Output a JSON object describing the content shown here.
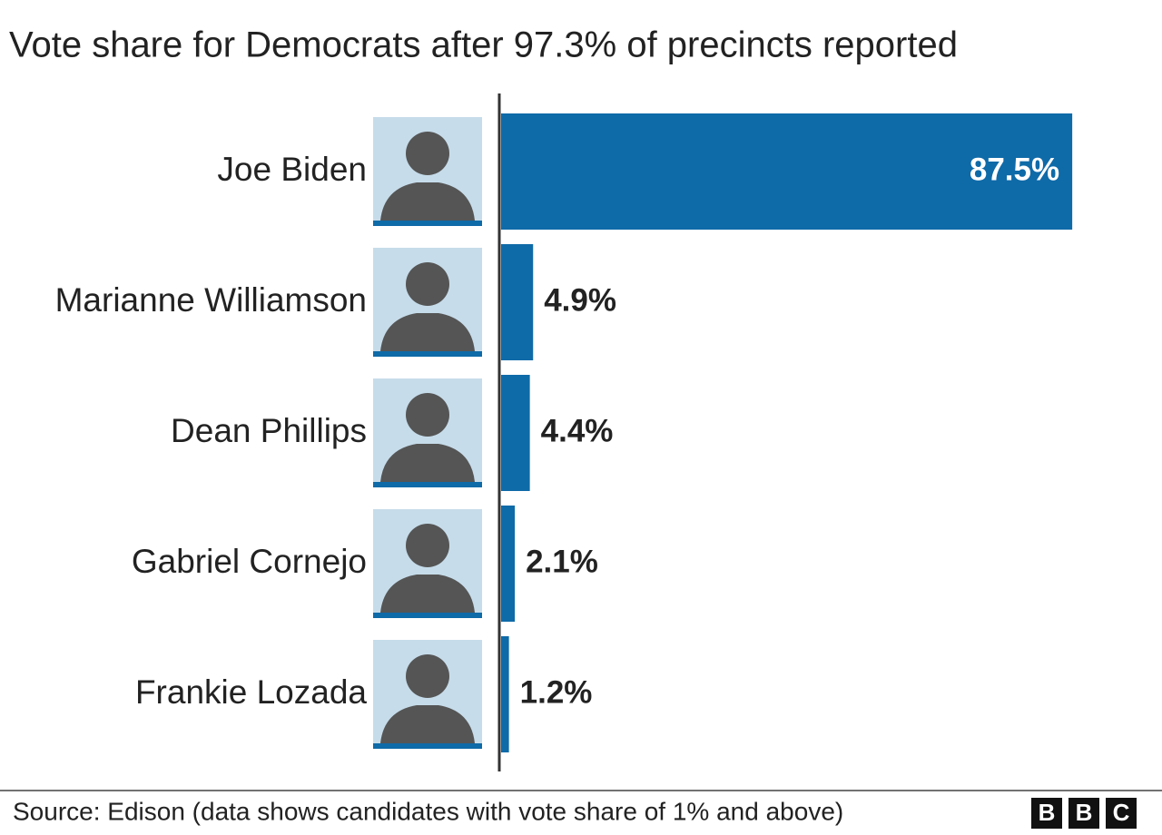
{
  "chart_data": {
    "type": "barh",
    "title": "Vote share for Democrats after 97.3% of precincts reported",
    "categories": [
      "Joe Biden",
      "Marianne Williamson",
      "Dean Phillips",
      "Gabriel Cornejo",
      "Frankie Lozada"
    ],
    "values": [
      87.5,
      4.9,
      4.4,
      2.1,
      1.2
    ],
    "value_labels": [
      "87.5%",
      "4.9%",
      "4.4%",
      "2.1%",
      "1.2%"
    ],
    "color": "#0f6aa8",
    "source": "Source: Edison (data shows candidates with vote share of 1% and above)",
    "logo": [
      "B",
      "B",
      "C"
    ]
  }
}
